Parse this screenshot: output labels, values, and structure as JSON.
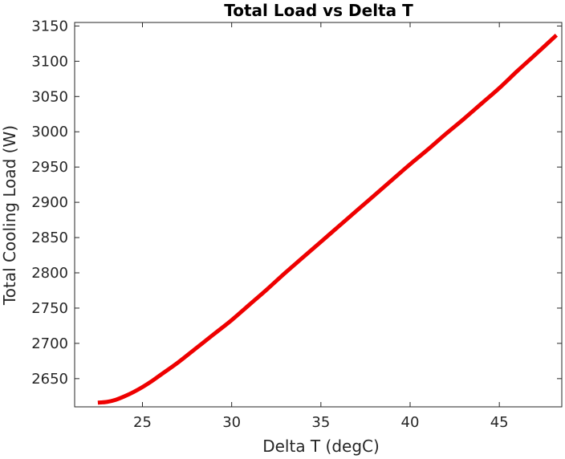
{
  "chart_data": {
    "type": "line",
    "title": "Total Load vs Delta T",
    "xlabel": "Delta T (degC)",
    "ylabel": "Total Cooling Load (W)",
    "xlim": [
      21.2,
      48.5
    ],
    "ylim": [
      2610,
      3155
    ],
    "xticks": [
      25,
      30,
      35,
      40,
      45
    ],
    "yticks": [
      2650,
      2700,
      2750,
      2800,
      2850,
      2900,
      2950,
      3000,
      3050,
      3100,
      3150
    ],
    "grid": false,
    "series": [
      {
        "color": "#ee0000",
        "x": [
          22.5,
          23.0,
          23.5,
          24.0,
          24.5,
          25.0,
          25.5,
          26.0,
          27.0,
          28.0,
          29.0,
          30.0,
          31.0,
          32.0,
          33.0,
          34.0,
          35.0,
          36.0,
          37.0,
          38.0,
          39.0,
          40.0,
          41.0,
          42.0,
          43.0,
          44.0,
          45.0,
          46.0,
          47.0,
          48.2
        ],
        "y": [
          2616,
          2617,
          2620,
          2625,
          2631,
          2638,
          2646,
          2655,
          2673,
          2693,
          2713,
          2733,
          2755,
          2777,
          2800,
          2822,
          2844,
          2866,
          2888,
          2910,
          2932,
          2954,
          2975,
          2997,
          3018,
          3040,
          3062,
          3086,
          3109,
          3137
        ]
      }
    ]
  }
}
